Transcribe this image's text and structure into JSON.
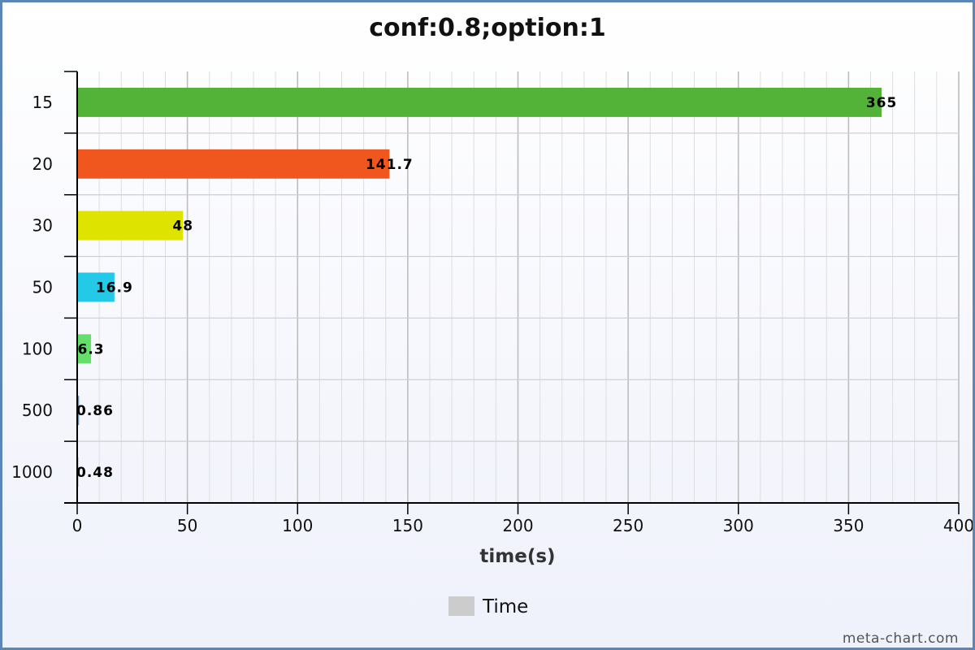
{
  "chart_data": {
    "type": "bar",
    "orientation": "horizontal",
    "title": "conf:0.8;option:1",
    "xlabel": "time(s)",
    "ylabel": "",
    "categories": [
      "15",
      "20",
      "30",
      "50",
      "100",
      "500",
      "1000"
    ],
    "series": [
      {
        "name": "Time",
        "values": [
          365,
          141.7,
          48,
          16.9,
          6.3,
          0.86,
          0.48
        ],
        "labels": [
          "365",
          "141.7",
          "48",
          "16.9",
          "6.3",
          "0.86",
          "0.48"
        ],
        "colors": [
          "#52b338",
          "#ef571f",
          "#dfe300",
          "#23c9e6",
          "#64e06a",
          "#6f8fb0",
          "#7a7a7a"
        ]
      }
    ],
    "xlim": [
      0,
      400
    ],
    "xticks": [
      "0",
      "50",
      "100",
      "150",
      "200",
      "250",
      "300",
      "350",
      "400"
    ],
    "grid": true,
    "legend": {
      "position": "bottom-center",
      "swatch_color": "#cccccc"
    }
  },
  "watermark": "meta-chart.com"
}
